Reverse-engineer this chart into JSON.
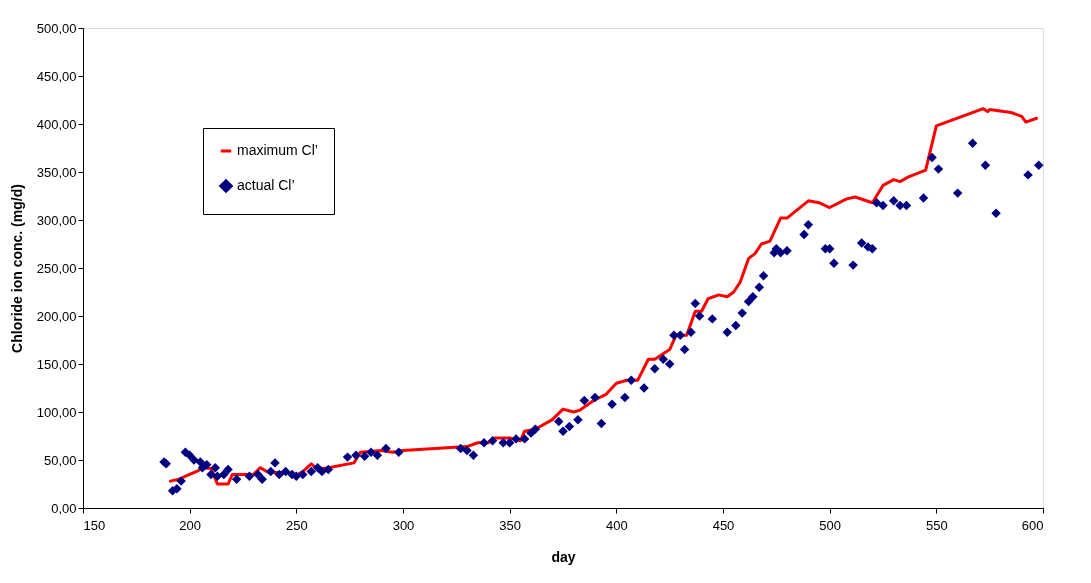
{
  "chart_data": {
    "type": "line",
    "xlabel": "day",
    "ylabel": "Chloride ion conc. (mg/d)",
    "xlim": [
      150,
      600
    ],
    "xticks": [
      150,
      200,
      250,
      300,
      350,
      400,
      450,
      500,
      550,
      600
    ],
    "ylim": [
      0,
      500
    ],
    "yticks": [
      {
        "value": 0,
        "label": "0,00"
      },
      {
        "value": 50,
        "label": "50,00"
      },
      {
        "value": 100,
        "label": "100,00"
      },
      {
        "value": 150,
        "label": "150,00"
      },
      {
        "value": 200,
        "label": "200,00"
      },
      {
        "value": 250,
        "label": "250,00"
      },
      {
        "value": 300,
        "label": "300,00"
      },
      {
        "value": 350,
        "label": "350,00"
      },
      {
        "value": 400,
        "label": "400,00"
      },
      {
        "value": 450,
        "label": "450,00"
      },
      {
        "value": 500,
        "label": "500,00"
      }
    ],
    "grid": false,
    "legend": "top left",
    "series": [
      {
        "name": "maximum Cl’",
        "type": "line",
        "color": "#ff0000",
        "marker": "none",
        "line_style": "solid",
        "x": [
          191,
          195,
          200,
          203,
          207,
          210,
          213,
          218,
          220,
          230,
          233,
          237,
          245,
          250,
          253,
          257,
          260,
          265,
          277,
          280,
          290,
          295,
          300,
          330,
          335,
          340,
          343,
          350,
          355,
          357,
          362,
          370,
          375,
          380,
          383,
          390,
          395,
          400,
          405,
          410,
          415,
          418,
          425,
          428,
          433,
          437,
          440,
          443,
          448,
          452,
          455,
          458,
          462,
          465,
          468,
          472,
          477,
          480,
          490,
          495,
          500,
          508,
          512,
          520,
          525,
          530,
          533,
          537,
          545,
          550,
          572,
          574,
          575,
          585,
          590,
          592,
          597
        ],
        "values": [
          28,
          30,
          35,
          38,
          42,
          41,
          25,
          25,
          35,
          35,
          42,
          37,
          37,
          34,
          38,
          46,
          40,
          42,
          47,
          58,
          60,
          58,
          60,
          64,
          68,
          68,
          73,
          73,
          70,
          80,
          82,
          92,
          103,
          100,
          102,
          113,
          118,
          130,
          133,
          133,
          155,
          155,
          165,
          180,
          180,
          205,
          205,
          218,
          222,
          220,
          225,
          235,
          260,
          265,
          275,
          278,
          302,
          302,
          320,
          318,
          313,
          322,
          324,
          318,
          336,
          342,
          340,
          345,
          352,
          398,
          416,
          413,
          415,
          412,
          408,
          402,
          406
        ]
      },
      {
        "name": "actual Cl’",
        "type": "scatter",
        "color": "#000080",
        "marker": "diamond",
        "x": [
          188,
          189,
          192,
          194,
          196,
          198,
          200,
          202,
          205,
          206,
          208,
          210,
          212,
          213,
          216,
          218,
          222,
          228,
          232,
          234,
          238,
          240,
          242,
          245,
          248,
          250,
          253,
          257,
          260,
          262,
          265,
          274,
          278,
          282,
          285,
          288,
          292,
          298,
          327,
          330,
          333,
          338,
          342,
          347,
          350,
          353,
          357,
          360,
          362,
          373,
          375,
          378,
          382,
          385,
          390,
          393,
          398,
          404,
          407,
          413,
          418,
          422,
          425,
          427,
          430,
          432,
          435,
          437,
          439,
          445,
          452,
          456,
          459,
          462,
          464,
          467,
          469,
          474,
          475,
          477,
          480,
          488,
          490,
          498,
          500,
          502,
          511,
          515,
          518,
          520,
          522,
          525,
          530,
          533,
          536,
          544,
          548,
          551,
          560,
          567,
          573,
          578,
          593,
          598
        ],
        "values": [
          48,
          46,
          18,
          20,
          28,
          58,
          55,
          50,
          48,
          42,
          45,
          35,
          42,
          33,
          35,
          40,
          30,
          33,
          35,
          30,
          38,
          47,
          35,
          38,
          35,
          33,
          35,
          38,
          42,
          38,
          40,
          53,
          55,
          54,
          58,
          55,
          62,
          58,
          62,
          60,
          55,
          68,
          70,
          68,
          68,
          72,
          72,
          78,
          82,
          90,
          80,
          85,
          92,
          112,
          115,
          88,
          108,
          115,
          133,
          125,
          145,
          155,
          150,
          180,
          180,
          165,
          183,
          213,
          200,
          197,
          183,
          190,
          203,
          215,
          220,
          230,
          242,
          266,
          270,
          266,
          268,
          285,
          295,
          270,
          270,
          255,
          253,
          276,
          272,
          270,
          318,
          315,
          320,
          315,
          315,
          323,
          365,
          353,
          328,
          380,
          357,
          307,
          347,
          357
        ]
      }
    ]
  }
}
